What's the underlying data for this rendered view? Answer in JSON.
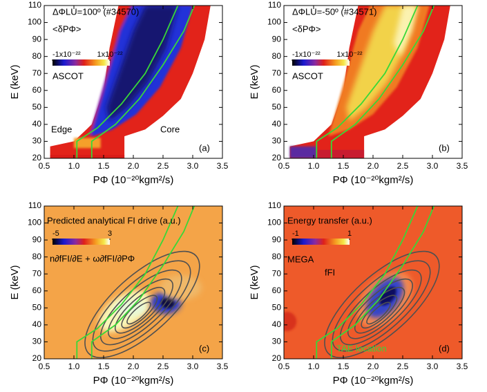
{
  "chart_data": [
    {
      "type": "heatmap",
      "xlabel": "PΦ (10⁻²⁰kgm²/s)",
      "ylabel": "E (keV)",
      "xlim": [
        0.5,
        3.5
      ],
      "xticks": [
        0.5,
        {
          "value": 1,
          "label": "1.0"
        },
        1.5,
        {
          "value": 2,
          "label": "2.0"
        },
        2.5,
        {
          "value": 3,
          "label": "3.0"
        },
        3.5
      ],
      "ylim": [
        20,
        110
      ],
      "yticks": [
        20,
        30,
        40,
        50,
        60,
        70,
        80,
        90,
        100,
        110
      ],
      "colorbar": {
        "lim": [
          -1e-22,
          1e-22
        ],
        "ticks": [
          {
            "value": -1e-22,
            "label": "-1x10⁻²²"
          },
          {
            "value": 1e-22,
            "label": "1x10⁻²²"
          }
        ]
      },
      "annotations": [
        "ΔΦLU=100º (#34570)",
        "<δPΦ>",
        "ASCOT",
        "Edge",
        "Core",
        "(a)"
      ]
    },
    {
      "type": "heatmap",
      "xlabel": "PΦ (10⁻²⁰kgm²/s)",
      "ylabel": "E (keV)",
      "xlim": [
        0.5,
        3.5
      ],
      "xticks": [
        0.5,
        {
          "value": 1,
          "label": "1.0"
        },
        1.5,
        {
          "value": 2,
          "label": "2.0"
        },
        2.5,
        {
          "value": 3,
          "label": "3.0"
        },
        3.5
      ],
      "ylim": [
        20,
        110
      ],
      "yticks": [
        20,
        30,
        40,
        50,
        60,
        70,
        80,
        90,
        100,
        110
      ],
      "colorbar": {
        "lim": [
          -1e-22,
          1e-22
        ],
        "ticks": [
          {
            "value": -1e-22,
            "label": "-1x10⁻²²"
          },
          {
            "value": 1e-22,
            "label": "1x10⁻²²"
          }
        ]
      },
      "annotations": [
        "ΔΦLU=-50º (#34571)",
        "<δPΦ>",
        "ASCOT",
        "(b)"
      ]
    },
    {
      "type": "heatmap",
      "xlabel": "PΦ (10⁻²⁰kgm²/s)",
      "ylabel": "E (keV)",
      "xlim": [
        0.5,
        3.5
      ],
      "xticks": [
        0.5,
        {
          "value": 1,
          "label": "1.0"
        },
        1.5,
        {
          "value": 2,
          "label": "2.0"
        },
        2.5,
        {
          "value": 3,
          "label": "3.0"
        },
        3.5
      ],
      "ylim": [
        20,
        110
      ],
      "yticks": [
        20,
        30,
        40,
        50,
        60,
        70,
        80,
        90,
        100,
        110
      ],
      "colorbar": {
        "lim": [
          -5,
          3
        ],
        "ticks": [
          -5,
          3
        ]
      },
      "annotations": [
        "Predicted analytical FI drive (a.u.)",
        "n∂fFI/∂E  + ω∂fFI/∂PΦ",
        "(c)"
      ]
    },
    {
      "type": "heatmap",
      "xlabel": "PΦ (10⁻²⁰kgm²/s)",
      "ylabel": "E (keV)",
      "xlim": [
        0.5,
        3.5
      ],
      "xticks": [
        0.5,
        {
          "value": 1,
          "label": "1.0"
        },
        1.5,
        {
          "value": 2,
          "label": "2.0"
        },
        2.5,
        {
          "value": 3,
          "label": "3.0"
        },
        3.5
      ],
      "ylim": [
        20,
        110
      ],
      "yticks": [
        20,
        30,
        40,
        50,
        60,
        70,
        80,
        90,
        100,
        110
      ],
      "colorbar": {
        "lim": [
          -1,
          1
        ],
        "ticks": [
          -1,
          1
        ]
      },
      "annotations": [
        "Energy transfer (a.u.)",
        "MEGA",
        "fFI",
        "TAE location",
        "(d)"
      ]
    }
  ]
}
